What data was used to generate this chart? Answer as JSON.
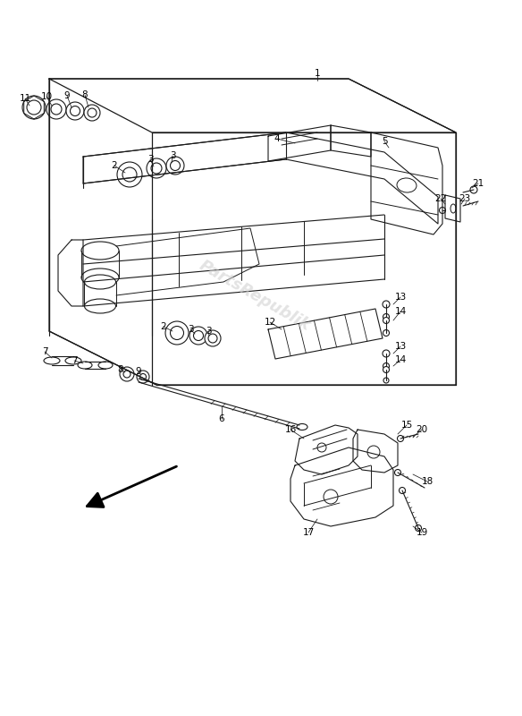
{
  "bg_color": "#ffffff",
  "line_color": "#1a1a1a",
  "watermark": "PartsRepublik",
  "watermark_color": "#d0d0d0",
  "fig_width": 5.84,
  "fig_height": 8.0,
  "dpi": 100
}
